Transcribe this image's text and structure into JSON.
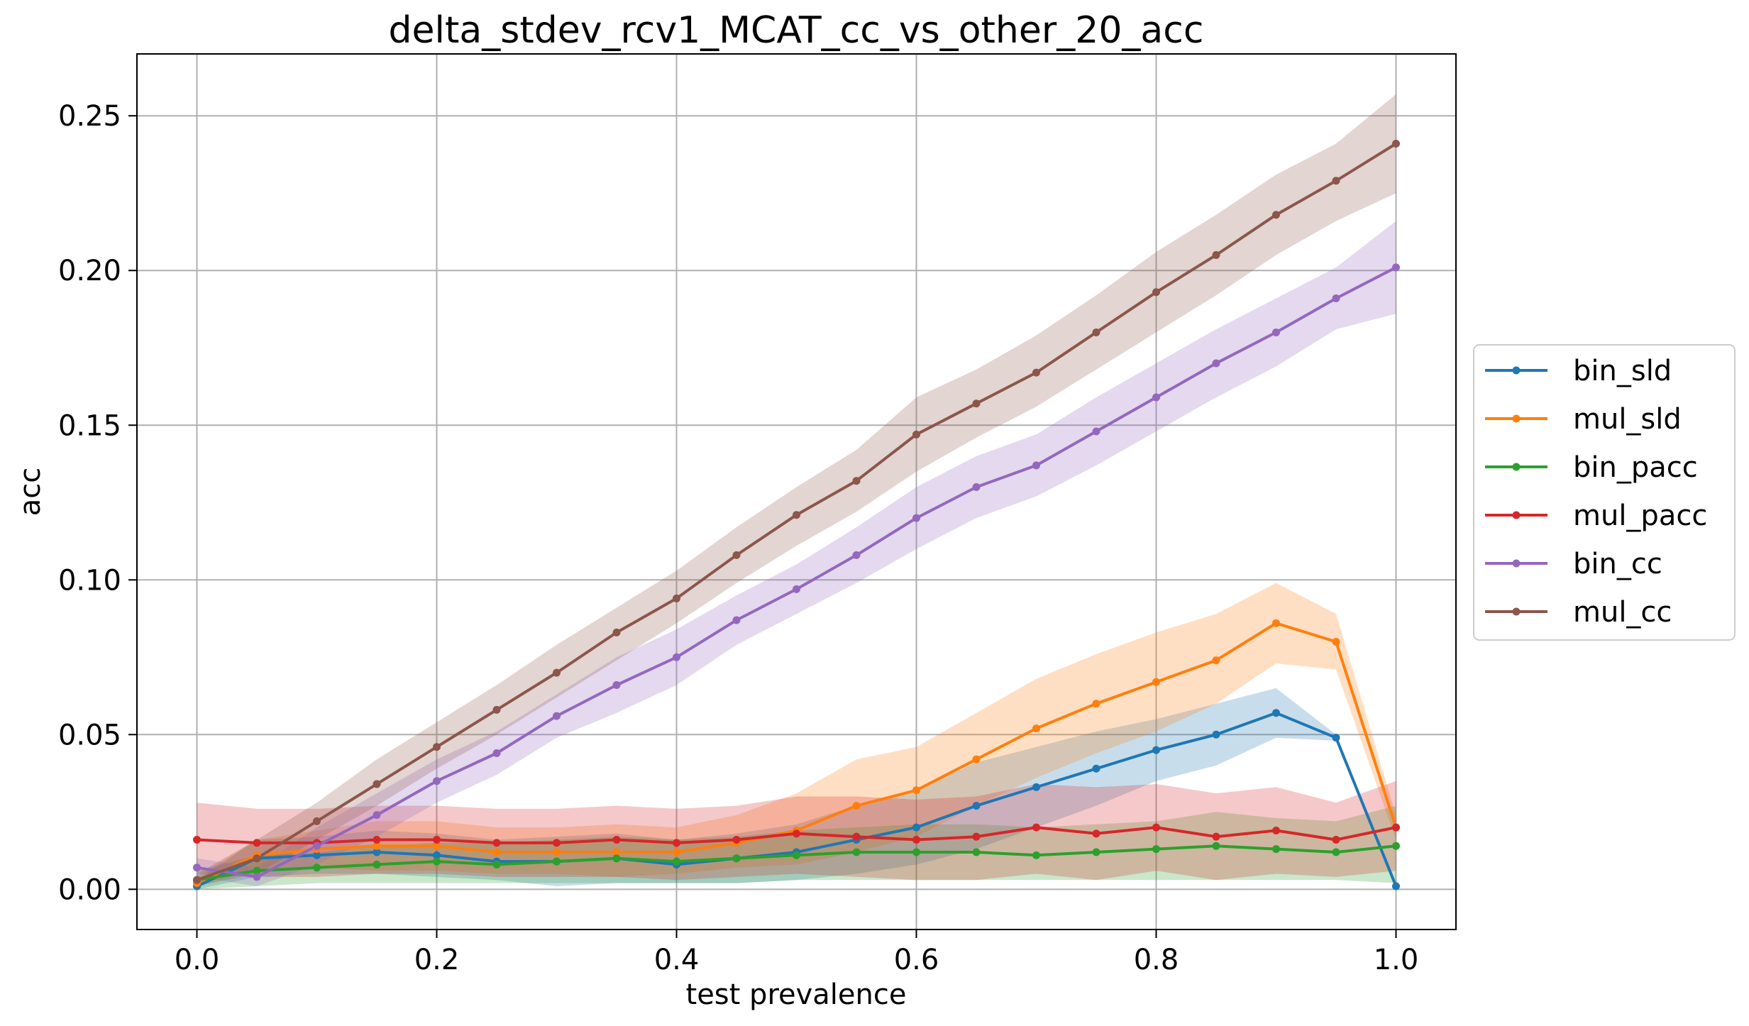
{
  "chart_data": {
    "type": "line",
    "title": "delta_stdev_rcv1_MCAT_cc_vs_other_20_acc",
    "xlabel": "test prevalence",
    "ylabel": "acc",
    "xlim": [
      -0.05,
      1.05
    ],
    "ylim": [
      -0.013,
      0.27
    ],
    "xticks": [
      0.0,
      0.2,
      0.4,
      0.6,
      0.8,
      1.0
    ],
    "xtick_labels": [
      "0.0",
      "0.2",
      "0.4",
      "0.6",
      "0.8",
      "1.0"
    ],
    "yticks": [
      0.0,
      0.05,
      0.1,
      0.15,
      0.2,
      0.25
    ],
    "ytick_labels": [
      "0.00",
      "0.05",
      "0.10",
      "0.15",
      "0.20",
      "0.25"
    ],
    "grid": true,
    "legend_position": "center-right-outside",
    "x": [
      0.0,
      0.05,
      0.1,
      0.15,
      0.2,
      0.25,
      0.3,
      0.35,
      0.4,
      0.45,
      0.5,
      0.55,
      0.6,
      0.65,
      0.7,
      0.75,
      0.8,
      0.85,
      0.9,
      0.95,
      1.0
    ],
    "series": [
      {
        "name": "bin_sld",
        "color": "#1f77b4",
        "values": [
          0.001,
          0.01,
          0.011,
          0.012,
          0.011,
          0.009,
          0.009,
          0.01,
          0.008,
          0.01,
          0.012,
          0.016,
          0.02,
          0.027,
          0.033,
          0.039,
          0.045,
          0.05,
          0.057,
          0.049,
          0.001
        ],
        "lower": [
          0.0,
          0.004,
          0.005,
          0.005,
          0.004,
          0.003,
          0.001,
          0.002,
          0.002,
          0.002,
          0.003,
          0.005,
          0.008,
          0.013,
          0.02,
          0.027,
          0.035,
          0.04,
          0.049,
          0.048,
          0.001
        ],
        "upper": [
          0.003,
          0.016,
          0.017,
          0.019,
          0.018,
          0.016,
          0.017,
          0.018,
          0.016,
          0.018,
          0.021,
          0.027,
          0.032,
          0.041,
          0.046,
          0.051,
          0.055,
          0.06,
          0.065,
          0.05,
          0.001
        ]
      },
      {
        "name": "mul_sld",
        "color": "#ff7f0e",
        "values": [
          0.002,
          0.011,
          0.013,
          0.014,
          0.014,
          0.012,
          0.012,
          0.012,
          0.012,
          0.015,
          0.019,
          0.027,
          0.032,
          0.042,
          0.052,
          0.06,
          0.067,
          0.074,
          0.086,
          0.08,
          0.02
        ],
        "lower": [
          0.001,
          0.006,
          0.007,
          0.006,
          0.006,
          0.005,
          0.005,
          0.004,
          0.005,
          0.007,
          0.008,
          0.012,
          0.017,
          0.027,
          0.036,
          0.044,
          0.051,
          0.06,
          0.073,
          0.071,
          0.016
        ],
        "upper": [
          0.004,
          0.016,
          0.019,
          0.022,
          0.022,
          0.02,
          0.02,
          0.021,
          0.02,
          0.024,
          0.031,
          0.042,
          0.046,
          0.057,
          0.068,
          0.076,
          0.083,
          0.089,
          0.099,
          0.089,
          0.024
        ]
      },
      {
        "name": "bin_pacc",
        "color": "#2ca02c",
        "values": [
          0.003,
          0.006,
          0.007,
          0.008,
          0.009,
          0.008,
          0.009,
          0.01,
          0.009,
          0.01,
          0.011,
          0.012,
          0.012,
          0.012,
          0.011,
          0.012,
          0.013,
          0.014,
          0.013,
          0.012,
          0.014
        ],
        "lower": [
          0.0,
          0.001,
          0.002,
          0.002,
          0.002,
          0.002,
          0.002,
          0.002,
          0.002,
          0.002,
          0.003,
          0.003,
          0.003,
          0.003,
          0.003,
          0.003,
          0.003,
          0.003,
          0.003,
          0.003,
          0.002
        ],
        "upper": [
          0.006,
          0.011,
          0.012,
          0.014,
          0.015,
          0.015,
          0.016,
          0.017,
          0.016,
          0.017,
          0.019,
          0.02,
          0.021,
          0.021,
          0.02,
          0.021,
          0.022,
          0.025,
          0.023,
          0.022,
          0.027
        ]
      },
      {
        "name": "mul_pacc",
        "color": "#d62728",
        "values": [
          0.016,
          0.015,
          0.015,
          0.016,
          0.016,
          0.015,
          0.015,
          0.016,
          0.015,
          0.016,
          0.018,
          0.017,
          0.016,
          0.017,
          0.02,
          0.018,
          0.02,
          0.017,
          0.019,
          0.016,
          0.02
        ],
        "lower": [
          0.005,
          0.004,
          0.004,
          0.005,
          0.005,
          0.004,
          0.004,
          0.004,
          0.003,
          0.004,
          0.005,
          0.004,
          0.003,
          0.003,
          0.005,
          0.003,
          0.006,
          0.003,
          0.005,
          0.004,
          0.006
        ],
        "upper": [
          0.028,
          0.026,
          0.026,
          0.027,
          0.027,
          0.026,
          0.026,
          0.027,
          0.026,
          0.027,
          0.03,
          0.03,
          0.029,
          0.03,
          0.034,
          0.033,
          0.034,
          0.031,
          0.033,
          0.028,
          0.035
        ]
      },
      {
        "name": "bin_cc",
        "color": "#9467bd",
        "values": [
          0.007,
          0.004,
          0.014,
          0.024,
          0.035,
          0.044,
          0.056,
          0.066,
          0.075,
          0.087,
          0.097,
          0.108,
          0.12,
          0.13,
          0.137,
          0.148,
          0.159,
          0.17,
          0.18,
          0.191,
          0.201
        ],
        "lower": [
          0.004,
          0.001,
          0.008,
          0.017,
          0.028,
          0.037,
          0.049,
          0.057,
          0.066,
          0.079,
          0.089,
          0.099,
          0.11,
          0.12,
          0.127,
          0.137,
          0.148,
          0.159,
          0.169,
          0.181,
          0.186
        ],
        "upper": [
          0.01,
          0.007,
          0.02,
          0.031,
          0.042,
          0.051,
          0.063,
          0.075,
          0.084,
          0.095,
          0.105,
          0.117,
          0.13,
          0.14,
          0.147,
          0.159,
          0.17,
          0.181,
          0.191,
          0.201,
          0.216
        ]
      },
      {
        "name": "mul_cc",
        "color": "#8c564b",
        "values": [
          0.003,
          0.01,
          0.022,
          0.034,
          0.046,
          0.058,
          0.07,
          0.083,
          0.094,
          0.108,
          0.121,
          0.132,
          0.147,
          0.157,
          0.167,
          0.18,
          0.193,
          0.205,
          0.218,
          0.229,
          0.241
        ],
        "lower": [
          0.001,
          0.005,
          0.016,
          0.027,
          0.039,
          0.05,
          0.062,
          0.074,
          0.086,
          0.099,
          0.111,
          0.122,
          0.135,
          0.146,
          0.156,
          0.168,
          0.18,
          0.192,
          0.205,
          0.216,
          0.225
        ],
        "upper": [
          0.005,
          0.016,
          0.028,
          0.042,
          0.054,
          0.066,
          0.079,
          0.091,
          0.103,
          0.117,
          0.13,
          0.142,
          0.159,
          0.168,
          0.179,
          0.192,
          0.206,
          0.218,
          0.231,
          0.241,
          0.257
        ]
      }
    ]
  }
}
